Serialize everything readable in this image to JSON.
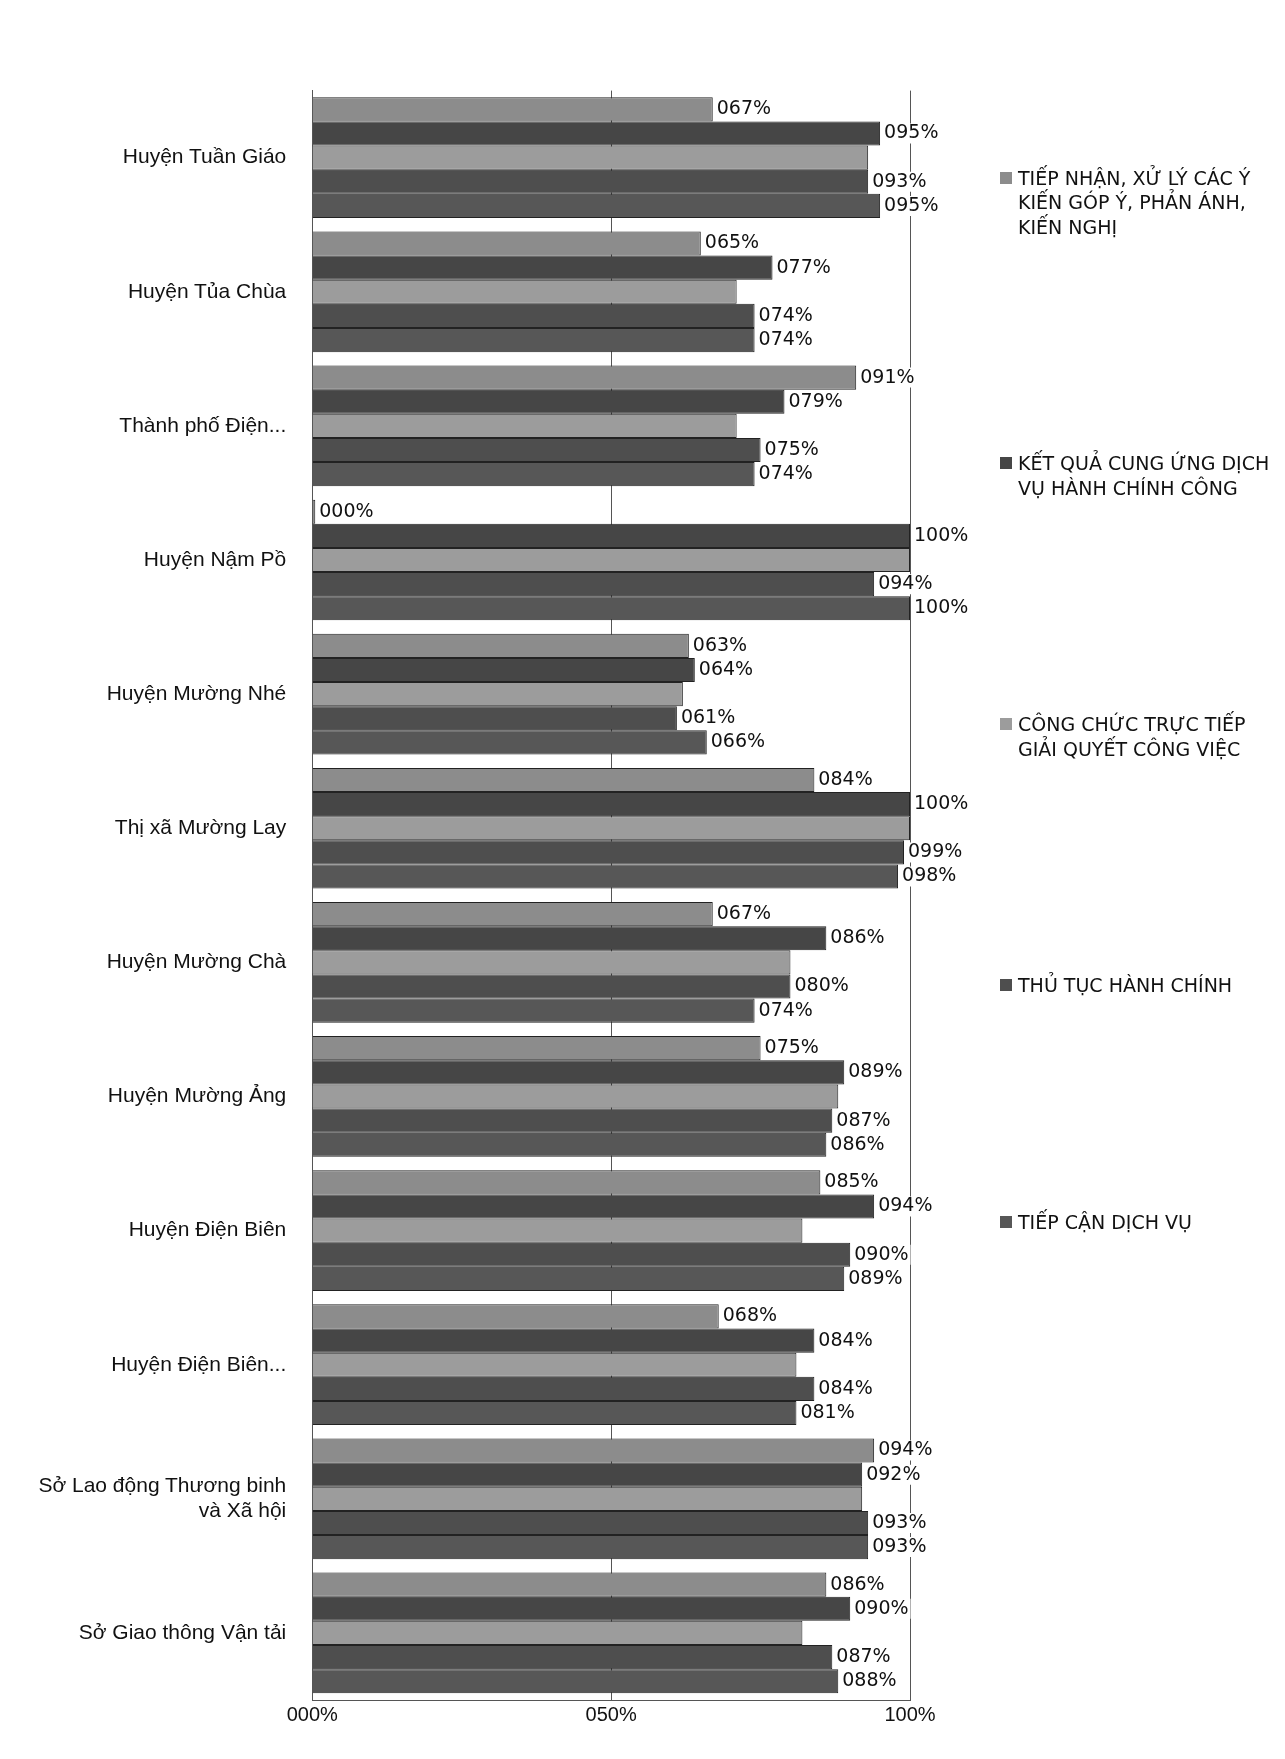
{
  "chart_data": {
    "type": "bar",
    "orientation": "horizontal",
    "categories": [
      "Huyện Tuần Giáo",
      "Huyện Tủa Chùa",
      "Thành phố Điện...",
      "Huyện Nậm Pồ",
      "Huyện Mường Nhé",
      "Thị xã Mường Lay",
      "Huyện Mường Chà",
      "Huyện Mường Ảng",
      "Huyện Điện Biên",
      "Huyện Điện Biên...",
      "Sở Lao động Thương binh và Xã hội",
      "Sở Giao thông Vận tải"
    ],
    "series": [
      {
        "name": "TIẾP NHẬN, XỬ LÝ CÁC Ý KIẾN GÓP Ý, PHẢN ÁNH, KIẾN NGHỊ",
        "color": "#8c8c8c",
        "values": [
          67,
          65,
          91,
          0,
          63,
          84,
          67,
          75,
          85,
          68,
          94,
          86
        ],
        "value_labels": [
          "067%",
          "065%",
          "091%",
          "000%",
          "063%",
          "084%",
          "067%",
          "075%",
          "085%",
          "068%",
          "094%",
          "086%"
        ]
      },
      {
        "name": "KẾT QUẢ CUNG ỨNG DỊCH VỤ HÀNH CHÍNH CÔNG",
        "color": "#464646",
        "values": [
          95,
          77,
          79,
          100,
          64,
          100,
          86,
          89,
          94,
          84,
          92,
          90
        ],
        "value_labels": [
          "095%",
          "077%",
          "079%",
          "100%",
          "064%",
          "100%",
          "086%",
          "089%",
          "094%",
          "084%",
          "092%",
          "090%"
        ]
      },
      {
        "name": "CÔNG CHỨC TRỰC TIẾP GIẢI QUYẾT CÔNG VIỆC",
        "color": "#9c9c9c",
        "values": [
          93,
          71,
          71,
          100,
          62,
          100,
          80,
          88,
          82,
          81,
          92,
          82
        ]
      },
      {
        "name": "THỦ TỤC HÀNH CHÍNH",
        "color": "#4e4e4e",
        "values": [
          93,
          74,
          75,
          94,
          61,
          99,
          80,
          87,
          90,
          84,
          93,
          87
        ],
        "value_labels": [
          "093%",
          "074%",
          "075%",
          "094%",
          "061%",
          "099%",
          "080%",
          "087%",
          "090%",
          "084%",
          "093%",
          "087%"
        ]
      },
      {
        "name": "TIẾP CẬN DỊCH VỤ",
        "color": "#575757",
        "values": [
          95,
          74,
          74,
          100,
          66,
          98,
          74,
          86,
          89,
          81,
          93,
          88
        ],
        "value_labels": [
          "095%",
          "074%",
          "074%",
          "100%",
          "066%",
          "098%",
          "074%",
          "086%",
          "089%",
          "081%",
          "093%",
          "088%"
        ]
      }
    ],
    "xlim": [
      0,
      100
    ],
    "xticks": [
      {
        "value": 0,
        "label": "000%"
      },
      {
        "value": 50,
        "label": "050%"
      },
      {
        "value": 100,
        "label": "100%"
      }
    ],
    "grid": "x",
    "legend": "right"
  }
}
